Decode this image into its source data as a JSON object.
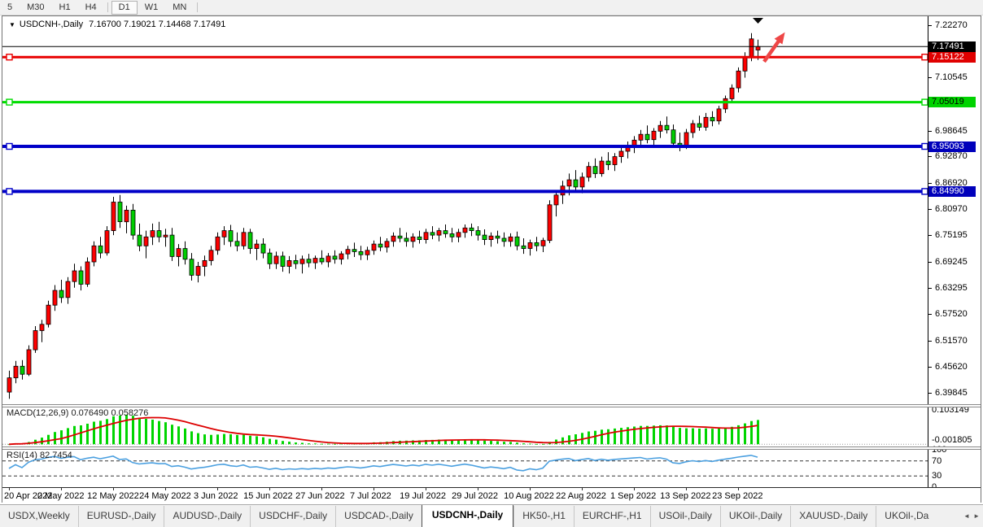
{
  "toolbar": {
    "buttons": [
      {
        "label": "5",
        "active": false
      },
      {
        "label": "M30",
        "active": false
      },
      {
        "label": "H1",
        "active": false
      },
      {
        "label": "H4",
        "active": false
      },
      {
        "label": "D1",
        "active": true
      },
      {
        "label": "W1",
        "active": false
      },
      {
        "label": "MN",
        "active": false
      }
    ]
  },
  "chart": {
    "symbol_label": "USDCNH-,Daily",
    "ohlc_label": "7.16700 7.19021 7.14468 7.17491",
    "open": "7.16700",
    "high": "7.19021",
    "low": "7.14468",
    "close": "7.17491"
  },
  "price_axis": {
    "ticks": [
      "7.22270",
      "7.10545",
      "6.98645",
      "6.92870",
      "6.86920",
      "6.80970",
      "6.75195",
      "6.69245",
      "6.63295",
      "6.57520",
      "6.51570",
      "6.45620",
      "6.39845"
    ],
    "badges": [
      {
        "value": "7.17491",
        "bg": "#000000",
        "fg": "#ffffff"
      },
      {
        "value": "7.15122",
        "bg": "#e00000",
        "fg": "#ffffff"
      },
      {
        "value": "7.05019",
        "bg": "#00d300",
        "fg": "#000000"
      },
      {
        "value": "6.95093",
        "bg": "#0000bb",
        "fg": "#ffffff"
      },
      {
        "value": "6.84990",
        "bg": "#0000bb",
        "fg": "#ffffff"
      }
    ]
  },
  "objects": {
    "current_price_line": {
      "price": 7.17491,
      "color": "#000000",
      "width": 1
    },
    "hlines": [
      {
        "price": 7.15122,
        "color": "#e80000",
        "width": 3
      },
      {
        "price": 7.05019,
        "color": "#00dc00",
        "width": 3
      },
      {
        "price": 6.95093,
        "color": "#0000c8",
        "width": 4
      },
      {
        "price": 6.8499,
        "color": "#0000c8",
        "width": 4
      }
    ],
    "arrow": {
      "color": "#ee4747",
      "from": {
        "bar": 116,
        "price": 7.141
      },
      "to": {
        "bar": 119.2,
        "price": 7.207
      }
    },
    "shift_marker": {
      "bar": 115,
      "color": "#0a0a0a"
    }
  },
  "chart_data": {
    "type": "candlestick",
    "symbol": "USDCNH",
    "timeframe": "Daily",
    "up_color": "#fe0000",
    "down_color": "#00cd00",
    "color_convention": "red = bullish, green = bearish",
    "ylim": [
      6.39845,
      7.2227
    ],
    "x_tick_labels": [
      "20 Apr 2022",
      "2 May 2022",
      "12 May 2022",
      "24 May 2022",
      "3 Jun 2022",
      "15 Jun 2022",
      "27 Jun 2022",
      "7 Jul 2022",
      "19 Jul 2022",
      "29 Jul 2022",
      "10 Aug 2022",
      "22 Aug 2022",
      "1 Sep 2022",
      "13 Sep 2022",
      "23 Sep 2022"
    ],
    "x_tick_bar_index": [
      0,
      8,
      16,
      24,
      32,
      40,
      48,
      56,
      64,
      72,
      80,
      88,
      96,
      104,
      112
    ],
    "candles_ohlc": [
      [
        6.4,
        6.448,
        6.385,
        6.432
      ],
      [
        6.432,
        6.47,
        6.42,
        6.458
      ],
      [
        6.458,
        6.472,
        6.428,
        6.44
      ],
      [
        6.44,
        6.505,
        6.436,
        6.495
      ],
      [
        6.495,
        6.548,
        6.488,
        6.538
      ],
      [
        6.538,
        6.562,
        6.512,
        6.552
      ],
      [
        6.552,
        6.605,
        6.545,
        6.595
      ],
      [
        6.595,
        6.64,
        6.582,
        6.628
      ],
      [
        6.628,
        6.652,
        6.6,
        6.612
      ],
      [
        6.612,
        6.658,
        6.598,
        6.648
      ],
      [
        6.648,
        6.688,
        6.634,
        6.672
      ],
      [
        6.672,
        6.682,
        6.628,
        6.642
      ],
      [
        6.642,
        6.702,
        6.636,
        6.692
      ],
      [
        6.692,
        6.738,
        6.682,
        6.728
      ],
      [
        6.728,
        6.748,
        6.7,
        6.712
      ],
      [
        6.712,
        6.772,
        6.706,
        6.762
      ],
      [
        6.762,
        6.838,
        6.752,
        6.826
      ],
      [
        6.826,
        6.842,
        6.768,
        6.782
      ],
      [
        6.782,
        6.818,
        6.756,
        6.808
      ],
      [
        6.808,
        6.822,
        6.742,
        6.752
      ],
      [
        6.752,
        6.778,
        6.716,
        6.728
      ],
      [
        6.728,
        6.762,
        6.7,
        6.748
      ],
      [
        6.748,
        6.778,
        6.73,
        6.762
      ],
      [
        6.762,
        6.782,
        6.736,
        6.748
      ],
      [
        6.748,
        6.766,
        6.726,
        6.752
      ],
      [
        6.752,
        6.768,
        6.694,
        6.704
      ],
      [
        6.704,
        6.732,
        6.682,
        6.722
      ],
      [
        6.722,
        6.738,
        6.686,
        6.698
      ],
      [
        6.698,
        6.712,
        6.65,
        6.662
      ],
      [
        6.662,
        6.692,
        6.646,
        6.682
      ],
      [
        6.682,
        6.706,
        6.66,
        6.695
      ],
      [
        6.695,
        6.728,
        6.684,
        6.718
      ],
      [
        6.718,
        6.758,
        6.708,
        6.748
      ],
      [
        6.748,
        6.772,
        6.73,
        6.762
      ],
      [
        6.762,
        6.775,
        6.726,
        6.738
      ],
      [
        6.738,
        6.758,
        6.716,
        6.728
      ],
      [
        6.728,
        6.768,
        6.72,
        6.758
      ],
      [
        6.758,
        6.766,
        6.71,
        6.722
      ],
      [
        6.722,
        6.742,
        6.696,
        6.732
      ],
      [
        6.732,
        6.745,
        6.7,
        6.712
      ],
      [
        6.712,
        6.722,
        6.676,
        6.688
      ],
      [
        6.688,
        6.715,
        6.676,
        6.705
      ],
      [
        6.705,
        6.715,
        6.67,
        6.682
      ],
      [
        6.682,
        6.705,
        6.666,
        6.695
      ],
      [
        6.695,
        6.708,
        6.676,
        6.688
      ],
      [
        6.688,
        6.706,
        6.666,
        6.698
      ],
      [
        6.698,
        6.71,
        6.68,
        6.69
      ],
      [
        6.69,
        6.706,
        6.676,
        6.7
      ],
      [
        6.7,
        6.718,
        6.686,
        6.692
      ],
      [
        6.692,
        6.712,
        6.68,
        6.705
      ],
      [
        6.705,
        6.718,
        6.688,
        6.698
      ],
      [
        6.698,
        6.716,
        6.686,
        6.71
      ],
      [
        6.71,
        6.728,
        6.698,
        6.72
      ],
      [
        6.72,
        6.735,
        6.703,
        6.715
      ],
      [
        6.715,
        6.728,
        6.696,
        6.708
      ],
      [
        6.708,
        6.726,
        6.696,
        6.718
      ],
      [
        6.718,
        6.74,
        6.708,
        6.732
      ],
      [
        6.732,
        6.748,
        6.716,
        6.725
      ],
      [
        6.725,
        6.745,
        6.713,
        6.738
      ],
      [
        6.738,
        6.758,
        6.726,
        6.75
      ],
      [
        6.75,
        6.768,
        6.736,
        6.745
      ],
      [
        6.745,
        6.758,
        6.726,
        6.738
      ],
      [
        6.738,
        6.756,
        6.724,
        6.748
      ],
      [
        6.748,
        6.762,
        6.733,
        6.742
      ],
      [
        6.742,
        6.766,
        6.733,
        6.758
      ],
      [
        6.758,
        6.772,
        6.743,
        6.752
      ],
      [
        6.752,
        6.768,
        6.738,
        6.762
      ],
      [
        6.762,
        6.776,
        6.746,
        6.755
      ],
      [
        6.755,
        6.768,
        6.736,
        6.748
      ],
      [
        6.748,
        6.766,
        6.736,
        6.758
      ],
      [
        6.758,
        6.776,
        6.746,
        6.768
      ],
      [
        6.768,
        6.778,
        6.75,
        6.762
      ],
      [
        6.762,
        6.772,
        6.74,
        6.752
      ],
      [
        6.752,
        6.765,
        6.73,
        6.742
      ],
      [
        6.742,
        6.758,
        6.726,
        6.75
      ],
      [
        6.75,
        6.762,
        6.733,
        6.745
      ],
      [
        6.745,
        6.758,
        6.726,
        6.738
      ],
      [
        6.738,
        6.756,
        6.726,
        6.748
      ],
      [
        6.748,
        6.76,
        6.718,
        6.728
      ],
      [
        6.728,
        6.745,
        6.71,
        6.722
      ],
      [
        6.722,
        6.742,
        6.706,
        6.735
      ],
      [
        6.735,
        6.748,
        6.716,
        6.728
      ],
      [
        6.728,
        6.746,
        6.714,
        6.74
      ],
      [
        6.74,
        6.83,
        6.734,
        6.82
      ],
      [
        6.82,
        6.85,
        6.794,
        6.842
      ],
      [
        6.842,
        6.874,
        6.822,
        6.862
      ],
      [
        6.862,
        6.89,
        6.841,
        6.876
      ],
      [
        6.876,
        6.898,
        6.85,
        6.86
      ],
      [
        6.86,
        6.892,
        6.846,
        6.882
      ],
      [
        6.882,
        6.916,
        6.872,
        6.906
      ],
      [
        6.906,
        6.924,
        6.88,
        6.89
      ],
      [
        6.89,
        6.928,
        6.883,
        6.918
      ],
      [
        6.918,
        6.938,
        6.898,
        6.91
      ],
      [
        6.91,
        6.936,
        6.896,
        6.928
      ],
      [
        6.928,
        6.95,
        6.914,
        6.94
      ],
      [
        6.94,
        6.962,
        6.924,
        6.952
      ],
      [
        6.952,
        6.974,
        6.936,
        6.965
      ],
      [
        6.965,
        6.988,
        6.95,
        6.978
      ],
      [
        6.978,
        6.998,
        6.958,
        6.966
      ],
      [
        6.966,
        6.992,
        6.953,
        6.985
      ],
      [
        6.985,
        7.008,
        6.97,
        6.998
      ],
      [
        6.998,
        7.018,
        6.98,
        6.988
      ],
      [
        6.988,
        7.0,
        6.948,
        6.958
      ],
      [
        6.958,
        6.982,
        6.94,
        6.952
      ],
      [
        6.952,
        6.99,
        6.945,
        6.982
      ],
      [
        6.982,
        7.01,
        6.97,
        7.002
      ],
      [
        7.002,
        7.02,
        6.986,
        6.994
      ],
      [
        6.994,
        7.026,
        6.986,
        7.016
      ],
      [
        7.016,
        7.03,
        6.996,
        7.008
      ],
      [
        7.008,
        7.042,
        7.0,
        7.035
      ],
      [
        7.035,
        7.065,
        7.026,
        7.058
      ],
      [
        7.058,
        7.09,
        7.048,
        7.082
      ],
      [
        7.082,
        7.128,
        7.072,
        7.12
      ],
      [
        7.12,
        7.162,
        7.105,
        7.152
      ],
      [
        7.152,
        7.205,
        7.142,
        7.192
      ],
      [
        7.167,
        7.1902,
        7.1447,
        7.1749
      ]
    ]
  },
  "macd_panel": {
    "label": "MACD(12,26,9)",
    "value1": "0.076490",
    "value2": "0.058276",
    "axis_top": "0.103149",
    "axis_bottom": "-0.001805",
    "histogram_color": "#00d500",
    "signal_color": "#dd0000"
  },
  "rsi_panel": {
    "label": "RSI(14)",
    "value": "82.7454",
    "line_color": "#4ba0e0",
    "levels": [
      70,
      30
    ],
    "axis_labels": [
      "100",
      "70",
      "30",
      "0"
    ]
  },
  "tabs": {
    "items": [
      {
        "label": "USDX,Weekly"
      },
      {
        "label": "EURUSD-,Daily"
      },
      {
        "label": "AUDUSD-,Daily"
      },
      {
        "label": "USDCHF-,Daily"
      },
      {
        "label": "USDCAD-,Daily"
      },
      {
        "label": "USDCNH-,Daily"
      },
      {
        "label": "HK50-,H1"
      },
      {
        "label": "EURCHF-,H1"
      },
      {
        "label": "USOil-,Daily"
      },
      {
        "label": "UKOil-,Daily"
      },
      {
        "label": "XAUUSD-,Daily"
      },
      {
        "label": "UKOil-,Da"
      }
    ],
    "active_index": 5
  }
}
